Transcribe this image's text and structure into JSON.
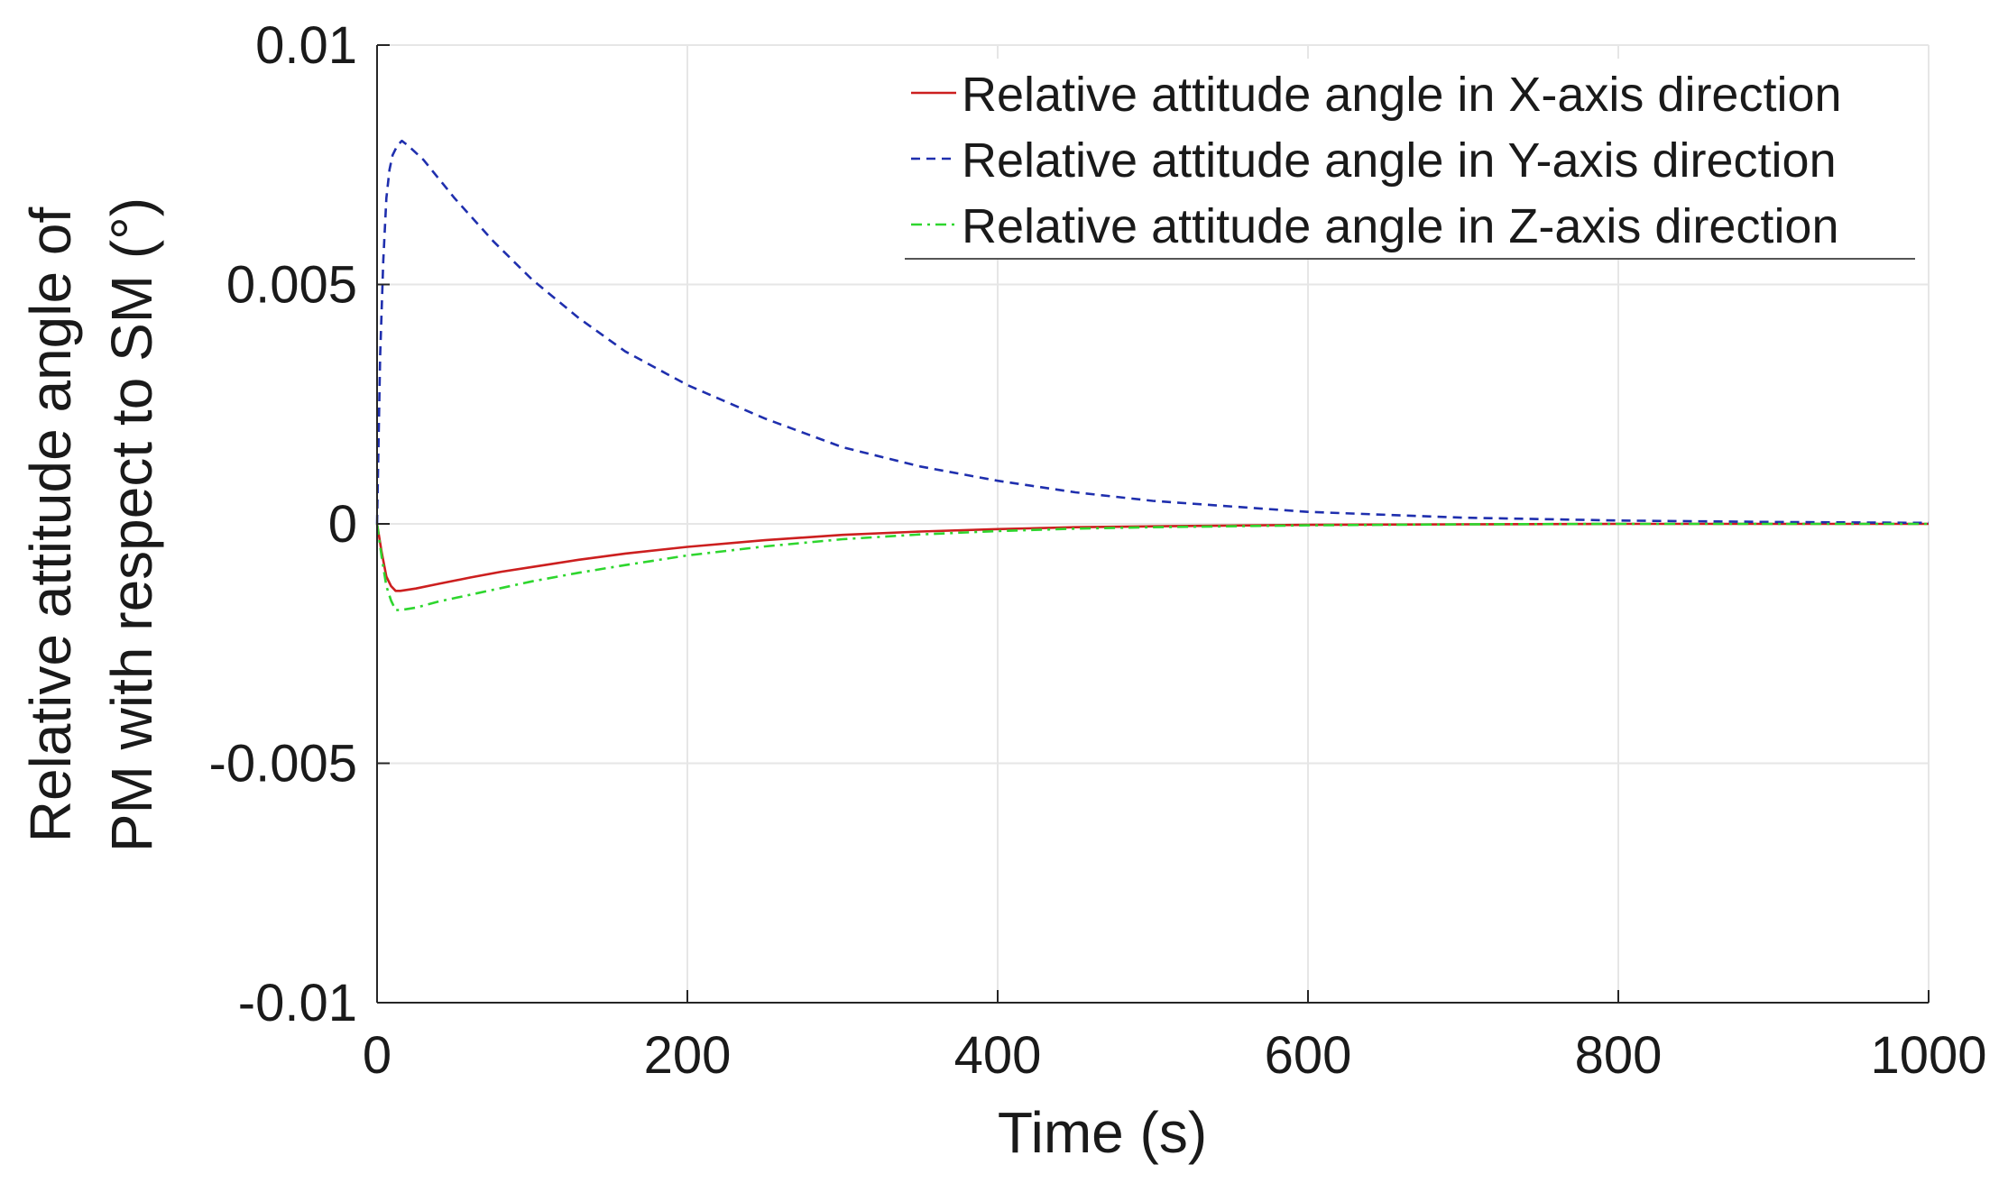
{
  "chart_data": {
    "type": "line",
    "title": "",
    "xlabel": "Time (s)",
    "ylabel_lines": [
      "Relative attitude angle of",
      "PM with respect to SM (°)"
    ],
    "xlim": [
      0,
      1000
    ],
    "ylim": [
      -0.01,
      0.01
    ],
    "xticks": [
      0,
      200,
      400,
      600,
      800,
      1000
    ],
    "xtick_labels": [
      "0",
      "200",
      "400",
      "600",
      "800",
      "1000"
    ],
    "yticks": [
      -0.01,
      -0.005,
      0,
      0.005,
      0.01
    ],
    "ytick_labels": [
      "-0.01",
      "-0.005",
      "0",
      "0.005",
      "0.01"
    ],
    "grid": true,
    "legend_position": "top-right",
    "series": [
      {
        "name": "Relative attitude angle in X-axis direction",
        "color": "#cc1f1f",
        "dash": "solid",
        "x": [
          0,
          3,
          6,
          9,
          12,
          15,
          25,
          40,
          60,
          80,
          100,
          130,
          160,
          200,
          250,
          300,
          350,
          400,
          450,
          500,
          600,
          700,
          800,
          900,
          1000
        ],
        "y": [
          0,
          -0.0006,
          -0.0011,
          -0.0013,
          -0.0014,
          -0.0014,
          -0.00135,
          -0.00125,
          -0.00112,
          -0.001,
          -0.0009,
          -0.00075,
          -0.00062,
          -0.00048,
          -0.00034,
          -0.00023,
          -0.00016,
          -0.00011,
          -7e-05,
          -5e-05,
          -2e-05,
          -1e-05,
          0,
          0,
          0
        ]
      },
      {
        "name": "Relative attitude angle in Y-axis direction",
        "color": "#1f2fae",
        "dash": "dashed",
        "x": [
          0,
          2,
          4,
          6,
          8,
          10,
          13,
          16,
          20,
          30,
          50,
          75,
          100,
          130,
          160,
          200,
          250,
          300,
          350,
          400,
          450,
          500,
          600,
          700,
          800,
          900,
          1000
        ],
        "y": [
          0,
          0.0035,
          0.0055,
          0.0068,
          0.0074,
          0.0077,
          0.0079,
          0.008,
          0.0079,
          0.0076,
          0.0068,
          0.0059,
          0.0051,
          0.0043,
          0.0036,
          0.0029,
          0.0022,
          0.0016,
          0.0012,
          0.0009,
          0.00066,
          0.00048,
          0.00025,
          0.00013,
          7e-05,
          4e-05,
          2e-05
        ]
      },
      {
        "name": "Relative attitude angle in Z-axis direction",
        "color": "#2ed62e",
        "dash": "dashdot",
        "x": [
          0,
          3,
          6,
          9,
          12,
          15,
          25,
          40,
          60,
          80,
          100,
          130,
          160,
          200,
          250,
          300,
          350,
          400,
          450,
          500,
          600,
          700,
          800,
          900,
          1000
        ],
        "y": [
          0,
          -0.0007,
          -0.0013,
          -0.0016,
          -0.0018,
          -0.0018,
          -0.00175,
          -0.00162,
          -0.00148,
          -0.00134,
          -0.0012,
          -0.00102,
          -0.00086,
          -0.00066,
          -0.00047,
          -0.00032,
          -0.00022,
          -0.00015,
          -0.0001,
          -7e-05,
          -3e-05,
          -1e-05,
          0,
          0,
          0
        ]
      }
    ]
  }
}
